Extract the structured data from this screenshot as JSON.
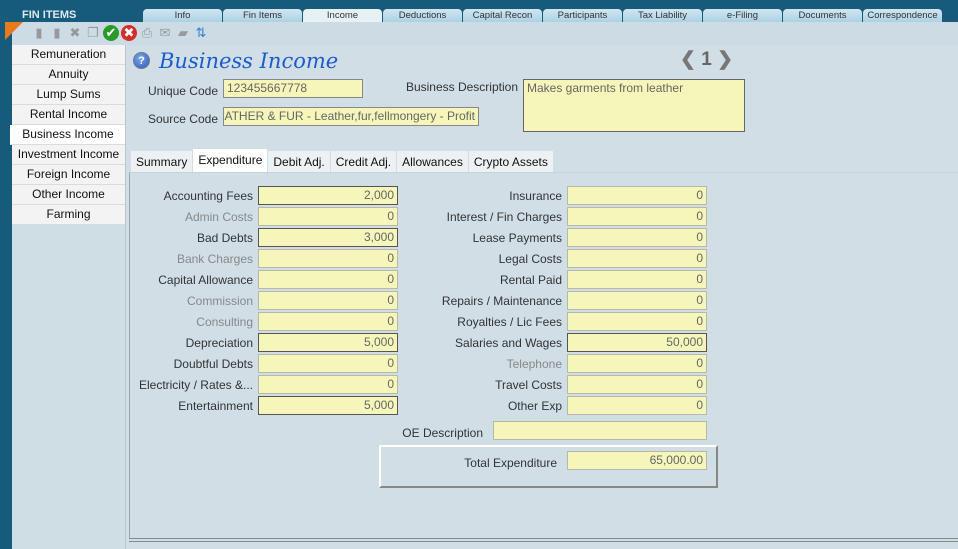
{
  "app": {
    "title": "FIN ITEMS"
  },
  "tabs": [
    {
      "label": "Info"
    },
    {
      "label": "Fin Items"
    },
    {
      "label": "Income",
      "active": true
    },
    {
      "label": "Deductions"
    },
    {
      "label": "Capital Recon"
    },
    {
      "label": "Participants"
    },
    {
      "label": "Tax Liability"
    },
    {
      "label": "e-Filing"
    },
    {
      "label": "Documents"
    },
    {
      "label": "Correspondence"
    }
  ],
  "toolbar": [
    {
      "icon": "new-document-icon"
    },
    {
      "icon": "edit-document-icon"
    },
    {
      "icon": "delete-icon"
    },
    {
      "icon": "copy-icon"
    },
    {
      "icon": "save-check-icon"
    },
    {
      "icon": "cancel-icon"
    },
    {
      "icon": "print-icon"
    },
    {
      "icon": "email-icon"
    },
    {
      "icon": "export-icon"
    },
    {
      "icon": "sort-icon"
    }
  ],
  "sidebar": {
    "items": [
      {
        "label": "Remuneration"
      },
      {
        "label": "Annuity"
      },
      {
        "label": "Lump Sums"
      },
      {
        "label": "Rental Income"
      },
      {
        "label": "Business Income",
        "active": true
      },
      {
        "label": "Investment Income"
      },
      {
        "label": "Foreign Income"
      },
      {
        "label": "Other Income"
      },
      {
        "label": "Farming"
      }
    ]
  },
  "header": {
    "title": "Business Income",
    "page": "1"
  },
  "form": {
    "unique_code_label": "Unique Code",
    "unique_code": "123455667778",
    "source_code_label": "Source Code",
    "source_code": "ATHER & FUR - Leather,fur,fellmongery - Profit",
    "business_description_label": "Business Description",
    "business_description": "Makes garments from leather"
  },
  "subtabs": [
    {
      "label": "Summary"
    },
    {
      "label": "Expenditure",
      "active": true
    },
    {
      "label": "Debit Adj."
    },
    {
      "label": "Credit Adj."
    },
    {
      "label": "Allowances"
    },
    {
      "label": "Crypto Assets"
    }
  ],
  "expenditure": {
    "left": [
      {
        "label": "Accounting Fees",
        "value": "2,000"
      },
      {
        "label": "Admin Costs",
        "value": "0",
        "disabled": true
      },
      {
        "label": "Bad Debts",
        "value": "3,000"
      },
      {
        "label": "Bank Charges",
        "value": "0",
        "disabled": true
      },
      {
        "label": "Capital Allowance",
        "value": "0"
      },
      {
        "label": "Commission",
        "value": "0",
        "disabled": true
      },
      {
        "label": "Consulting",
        "value": "0",
        "disabled": true
      },
      {
        "label": "Depreciation",
        "value": "5,000"
      },
      {
        "label": "Doubtful Debts",
        "value": "0"
      },
      {
        "label": "Electricity / Rates &...",
        "value": "0"
      },
      {
        "label": "Entertainment",
        "value": "5,000"
      }
    ],
    "right": [
      {
        "label": "Insurance",
        "value": "0"
      },
      {
        "label": "Interest / Fin Charges",
        "value": "0"
      },
      {
        "label": "Lease Payments",
        "value": "0"
      },
      {
        "label": "Legal Costs",
        "value": "0"
      },
      {
        "label": "Rental Paid",
        "value": "0"
      },
      {
        "label": "Repairs / Maintenance",
        "value": "0"
      },
      {
        "label": "Royalties / Lic Fees",
        "value": "0"
      },
      {
        "label": "Salaries and Wages",
        "value": "50,000"
      },
      {
        "label": "Telephone",
        "value": "0",
        "disabled": true
      },
      {
        "label": "Travel Costs",
        "value": "0"
      },
      {
        "label": "Other Exp",
        "value": "0"
      }
    ],
    "oe_description_label": "OE Description",
    "oe_description": "",
    "total_label": "Total Expenditure",
    "total": "65,000.00"
  }
}
